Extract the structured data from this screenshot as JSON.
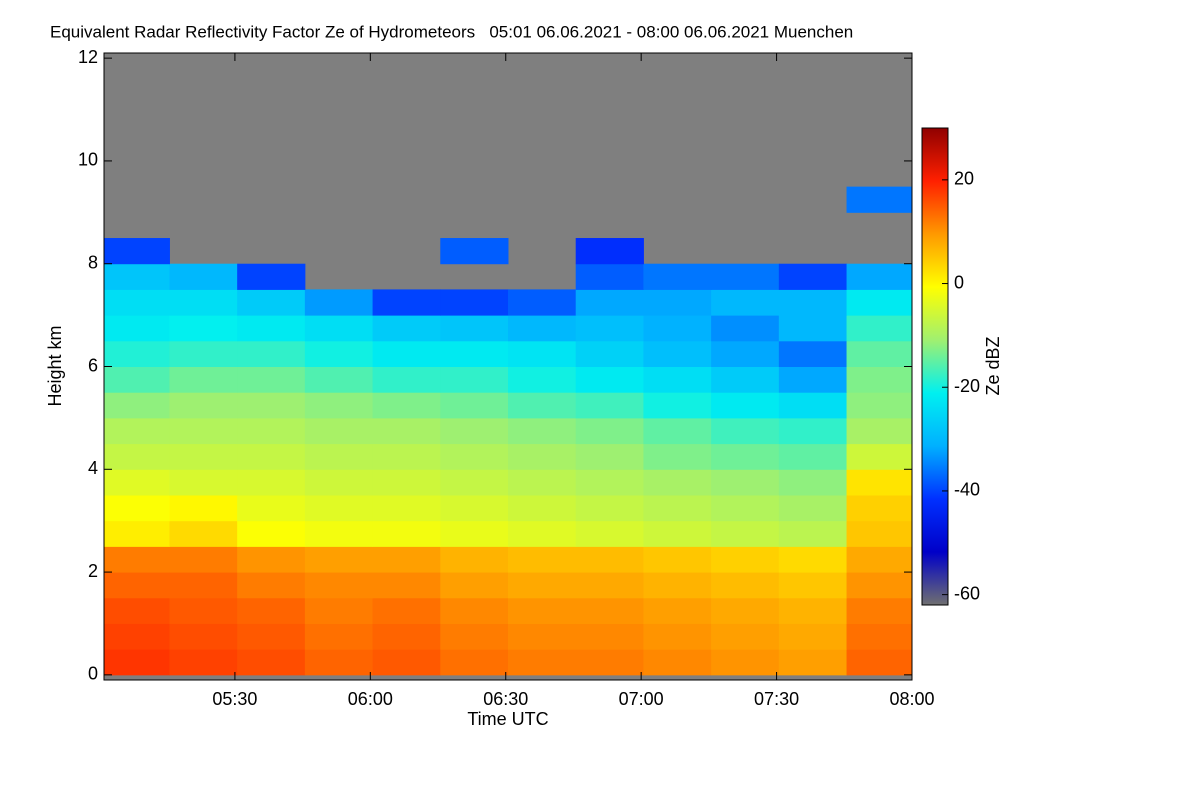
{
  "chart_data": {
    "type": "heatmap",
    "title": "Equivalent Radar Reflectivity Factor Ze of Hydrometeors   05:01 06.06.2021 - 08:00 06.06.2021 Muenchen",
    "x_label": "Time UTC",
    "y_label": "Height km",
    "colorbar_label": "Ze dBZ",
    "xlim": [
      301,
      480
    ],
    "xticks": [
      {
        "value": 330,
        "label": "05:30"
      },
      {
        "value": 360,
        "label": "06:00"
      },
      {
        "value": 390,
        "label": "06:30"
      },
      {
        "value": 420,
        "label": "07:00"
      },
      {
        "value": 450,
        "label": "07:30"
      },
      {
        "value": 480,
        "label": "08:00"
      }
    ],
    "ylim": [
      -0.1,
      12.1
    ],
    "yticks": [
      0,
      2,
      4,
      6,
      8,
      10,
      12
    ],
    "zlim": [
      -62,
      30
    ],
    "zticks": [
      -60,
      -40,
      -20,
      0,
      20
    ],
    "colormap": [
      "#707070",
      "#0000c8",
      "#0030ff",
      "#00b0ff",
      "#00f0f0",
      "#a0f070",
      "#ffff00",
      "#ff9900",
      "#ff2000",
      "#900000"
    ],
    "missing_color": "#7f7f7f",
    "x": [
      308,
      323,
      338,
      353,
      368,
      383,
      398,
      413,
      428,
      443,
      458,
      473
    ],
    "y": [
      0.25,
      0.75,
      1.25,
      1.75,
      2.25,
      2.75,
      3.25,
      3.75,
      4.25,
      4.75,
      5.25,
      5.75,
      6.25,
      6.75,
      7.25,
      7.75,
      8.25,
      8.75,
      9.25
    ],
    "z": [
      [
        18,
        17,
        16,
        14,
        15,
        13,
        12,
        12,
        11,
        10,
        9,
        14
      ],
      [
        17,
        16,
        15,
        13,
        14,
        12,
        11,
        11,
        10,
        9,
        8,
        13
      ],
      [
        16,
        15,
        14,
        12,
        13,
        11,
        10,
        10,
        9,
        8,
        7,
        12
      ],
      [
        14,
        14,
        12,
        11,
        11,
        9,
        8,
        8,
        7,
        6,
        5,
        10
      ],
      [
        12,
        12,
        10,
        9,
        9,
        7,
        6,
        6,
        5,
        4,
        3,
        8
      ],
      [
        1,
        3,
        -1,
        -2,
        -2,
        -3,
        -4,
        -5,
        -6,
        -7,
        -8,
        5
      ],
      [
        -1,
        0,
        -3,
        -4,
        -4,
        -5,
        -6,
        -7,
        -8,
        -9,
        -10,
        4
      ],
      [
        -4,
        -5,
        -5,
        -6,
        -6,
        -7,
        -8,
        -9,
        -10,
        -11,
        -12,
        2
      ],
      [
        -7,
        -7,
        -7,
        -8,
        -8,
        -9,
        -10,
        -11,
        -13,
        -14,
        -15,
        -6
      ],
      [
        -9,
        -9,
        -9,
        -10,
        -10,
        -11,
        -12,
        -13,
        -15,
        -17,
        -18,
        -10
      ],
      [
        -12,
        -11,
        -11,
        -12,
        -13,
        -14,
        -16,
        -17,
        -20,
        -22,
        -24,
        -12
      ],
      [
        -16,
        -14,
        -14,
        -16,
        -18,
        -18,
        -20,
        -22,
        -24,
        -27,
        -32,
        -13
      ],
      [
        -19,
        -18,
        -18,
        -20,
        -22,
        -22,
        -23,
        -26,
        -29,
        -32,
        -36,
        -15
      ],
      [
        -22,
        -21,
        -22,
        -24,
        -27,
        -28,
        -30,
        -29,
        -31,
        -34,
        -30,
        -18
      ],
      [
        -24,
        -24,
        -27,
        -33,
        -40,
        -40,
        -38,
        -32,
        -32,
        -30,
        -30,
        -22
      ],
      [
        -28,
        -30,
        -40,
        null,
        null,
        null,
        null,
        -38,
        -36,
        -36,
        -40,
        -32
      ],
      [
        -40,
        null,
        null,
        null,
        null,
        -38,
        null,
        -42,
        null,
        null,
        null,
        null
      ],
      [
        null,
        null,
        null,
        null,
        null,
        null,
        null,
        null,
        null,
        null,
        null,
        null
      ],
      [
        null,
        null,
        null,
        null,
        null,
        null,
        null,
        null,
        null,
        null,
        null,
        -36
      ]
    ]
  }
}
